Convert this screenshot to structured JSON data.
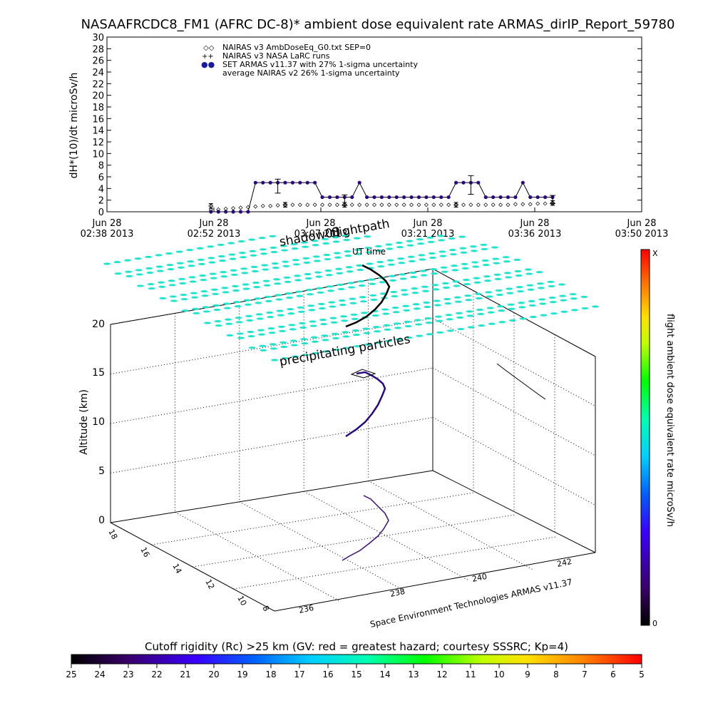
{
  "title": "NASAAFRCDC8_FM1 (AFRC DC-8)* ambient dose equivalent rate ARMAS_dirIP_Report_59780",
  "top_chart": {
    "ylabel": "dH*(10)/dt microSv/h",
    "legend": [
      {
        "symbol": "◇◇",
        "text": "NAIRAS v3 AmbDoseEq_G0.txt SEP=0"
      },
      {
        "symbol": "++",
        "text": "NAIRAS v3 NASA LaRC runs"
      },
      {
        "symbol": "●●",
        "text": "SET ARMAS v11.37 with 27% 1-sigma uncertainty"
      },
      {
        "symbol": "",
        "text": "average NAIRAS v2 26% 1-sigma uncertainty"
      }
    ],
    "x_ticks": [
      {
        "date": "Jun 28",
        "time": "02:38 2013"
      },
      {
        "date": "Jun 28",
        "time": "02:52 2013"
      },
      {
        "date": "Jun 28",
        "time": "03:07 2013"
      },
      {
        "date": "Jun 28",
        "time": "03:21 2013"
      },
      {
        "date": "Jun 28",
        "time": "03:36 2013"
      },
      {
        "date": "Jun 28",
        "time": "03:50 2013"
      }
    ]
  },
  "chart_data": [
    {
      "type": "line",
      "title": "NASAAFRCDC8_FM1 (AFRC DC-8)* ambient dose equivalent rate ARMAS_dirIP_Report_59780",
      "xlabel": "",
      "ylabel": "dH*(10)/dt microSv/h",
      "ylim": [
        0,
        30
      ],
      "y_ticks": [
        0,
        2,
        4,
        6,
        8,
        10,
        12,
        14,
        16,
        18,
        20,
        22,
        24,
        26,
        28,
        30
      ],
      "x_unit": "UT time (Jun 28 2013)",
      "xlim": [
        "02:38",
        "03:50"
      ],
      "series": [
        {
          "name": "SET ARMAS v11.37 with 27% 1-sigma uncertainty",
          "x": [
            "02:52",
            "02:53",
            "02:54",
            "02:55",
            "02:56",
            "02:57",
            "02:58",
            "02:59",
            "03:00",
            "03:01",
            "03:02",
            "03:03",
            "03:04",
            "03:05",
            "03:06",
            "03:07",
            "03:08",
            "03:09",
            "03:10",
            "03:11",
            "03:12",
            "03:13",
            "03:14",
            "03:15",
            "03:16",
            "03:17",
            "03:18",
            "03:19",
            "03:20",
            "03:21",
            "03:22",
            "03:23",
            "03:24",
            "03:25",
            "03:26",
            "03:27",
            "03:28",
            "03:29",
            "03:30",
            "03:31",
            "03:32",
            "03:33",
            "03:34",
            "03:35",
            "03:36",
            "03:37",
            "03:38"
          ],
          "y": [
            0,
            0,
            0,
            0,
            0,
            0,
            5,
            5,
            5,
            5,
            5,
            5,
            5,
            5,
            5,
            2.5,
            2.5,
            2.5,
            2.5,
            2.5,
            5,
            2.5,
            2.5,
            2.5,
            2.5,
            2.5,
            2.5,
            2.5,
            2.5,
            2.5,
            2.5,
            2.5,
            2.5,
            5,
            5,
            5,
            5,
            2.5,
            2.5,
            2.5,
            2.5,
            2.5,
            5,
            2.5,
            2.5,
            2.5,
            2.5
          ]
        },
        {
          "name": "NAIRAS v3 AmbDoseEq_G0.txt SEP=0",
          "x": [
            "02:52",
            "02:53",
            "02:54",
            "02:55",
            "02:56",
            "02:57",
            "02:58",
            "02:59",
            "03:00",
            "03:01",
            "03:02",
            "03:03",
            "03:04",
            "03:05",
            "03:06",
            "03:07",
            "03:08",
            "03:09",
            "03:10",
            "03:11",
            "03:12",
            "03:13",
            "03:14",
            "03:15",
            "03:16",
            "03:17",
            "03:18",
            "03:19",
            "03:20",
            "03:21",
            "03:22",
            "03:23",
            "03:24",
            "03:25",
            "03:26",
            "03:27",
            "03:28",
            "03:29",
            "03:30",
            "03:31",
            "03:32",
            "03:33",
            "03:34",
            "03:35",
            "03:36",
            "03:37",
            "03:38"
          ],
          "y": [
            0.3,
            0.4,
            0.5,
            0.6,
            0.7,
            0.8,
            0.9,
            1.0,
            1.0,
            1.1,
            1.1,
            1.2,
            1.2,
            1.2,
            1.2,
            1.2,
            1.2,
            1.2,
            1.2,
            1.2,
            1.2,
            1.2,
            1.2,
            1.2,
            1.2,
            1.2,
            1.2,
            1.2,
            1.2,
            1.2,
            1.2,
            1.2,
            1.2,
            1.2,
            1.2,
            1.2,
            1.2,
            1.2,
            1.2,
            1.2,
            1.2,
            1.3,
            1.3,
            1.3,
            1.4,
            1.4,
            1.4
          ]
        },
        {
          "name": "average NAIRAS v2 26% 1-sigma uncertainty",
          "x": [
            "02:52",
            "03:02",
            "03:10",
            "03:25",
            "03:38"
          ],
          "y": [
            1.0,
            1.2,
            1.2,
            1.2,
            1.5
          ],
          "err": [
            0.4,
            0.4,
            0.4,
            0.4,
            0.4
          ]
        }
      ],
      "error_bars": [
        {
          "x": "03:01",
          "y": 4.4,
          "err": 1.2
        },
        {
          "x": "03:10",
          "y": 2.0,
          "err": 0.9
        },
        {
          "x": "03:27",
          "y": 4.6,
          "err": 1.6
        },
        {
          "x": "03:38",
          "y": 2.1,
          "err": 0.7
        }
      ]
    },
    {
      "type": "scatter",
      "subtype": "3d-flight-path",
      "title": "precipitating particles",
      "ylabel": "Altitude (km)",
      "z_ticks": [
        0,
        5,
        10,
        15,
        20
      ],
      "lon_ticks": [
        236,
        238,
        240,
        242
      ],
      "lat_ticks": [
        8,
        10,
        12,
        14,
        16,
        18
      ],
      "annotations": [
        "shadow03",
        "flightpath",
        "UT time",
        "precipitating particles",
        "Space Environment Technologies ARMAS v11.37"
      ],
      "colorbar": {
        "label": "flight ambient dose equivalent rate microSv/h",
        "top": "X",
        "bottom": "0"
      }
    }
  ],
  "bottom_colorbar": {
    "label": "Cutoff rigidity (Rc) >25 km (GV: red = greatest hazard; courtesy SSSRC; Kp=4)",
    "ticks": [
      "25",
      "24",
      "23",
      "22",
      "21",
      "20",
      "19",
      "18",
      "17",
      "16",
      "15",
      "14",
      "13",
      "12",
      "11",
      "10",
      "9",
      "8",
      "7",
      "6",
      "5"
    ]
  },
  "three_d": {
    "altitude_label": "Altitude (km)",
    "z_ticks": [
      "0",
      "5",
      "10",
      "15",
      "20"
    ],
    "lat_ticks": [
      "8",
      "10",
      "12",
      "14",
      "16",
      "18"
    ],
    "lon_ticks": [
      "236",
      "238",
      "240",
      "242"
    ],
    "label_shadow": "shadow03",
    "label_flightpath": "flightpath",
    "label_ut": "UT time",
    "label_precip": "precipitating particles",
    "credit": "Space Environment Technologies ARMAS v11.37",
    "colorbar_label": "flight ambient dose equivalent rate microSv/h",
    "colorbar_top": "X",
    "colorbar_bottom": "0"
  },
  "colors": {
    "armas_series": "#2a0a80",
    "cyan_field": "#22e4cc",
    "axis": "#000000"
  }
}
